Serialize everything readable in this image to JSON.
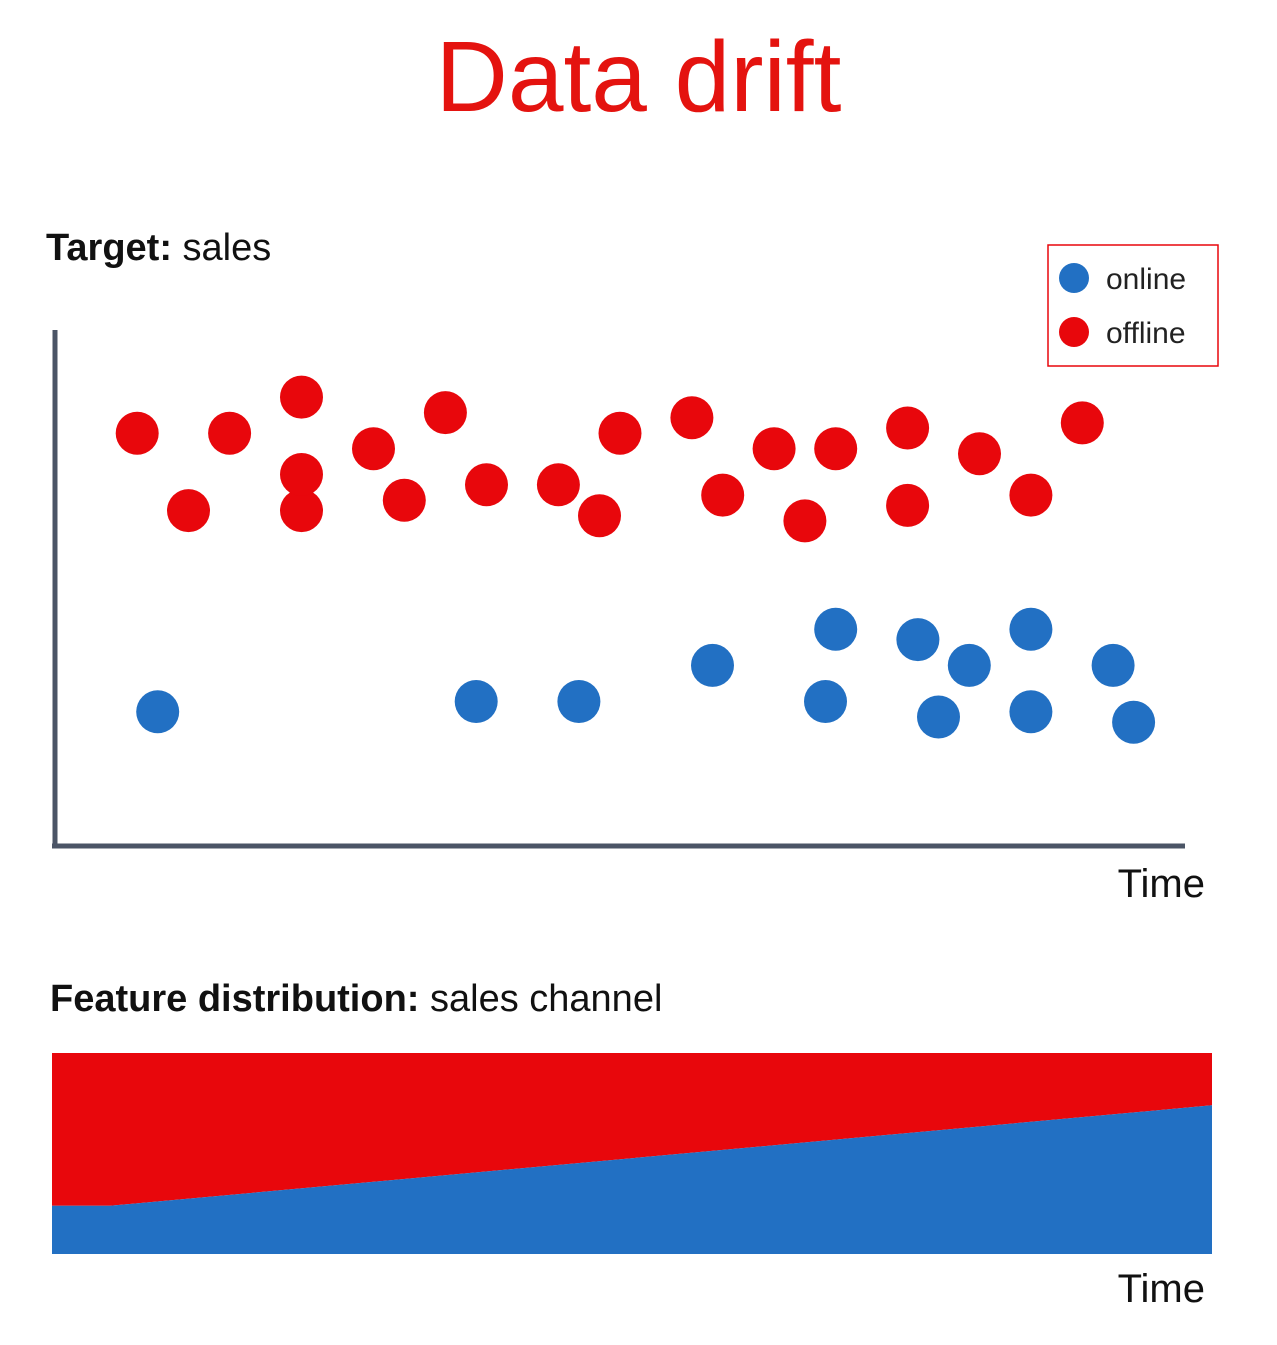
{
  "title": "Data drift",
  "colors": {
    "online": "#2270c3",
    "offline": "#e8070c",
    "axis": "#4b5566",
    "title": "#e4130f"
  },
  "chart_data": [
    {
      "type": "scatter",
      "title_bold": "Target:",
      "title_rest": "sales",
      "xlabel": "Time",
      "ylabel": "",
      "grid": false,
      "legend": {
        "placement": "top-right",
        "entries": [
          "online",
          "offline"
        ]
      },
      "series": [
        {
          "name": "offline",
          "points": [
            [
              8,
              80
            ],
            [
              13,
              65
            ],
            [
              17,
              80
            ],
            [
              24,
              65
            ],
            [
              24,
              72
            ],
            [
              24,
              87
            ],
            [
              31,
              77
            ],
            [
              34,
              67
            ],
            [
              38,
              84
            ],
            [
              42,
              70
            ],
            [
              49,
              70
            ],
            [
              53,
              64
            ],
            [
              55,
              80
            ],
            [
              62,
              83
            ],
            [
              65,
              68
            ],
            [
              70,
              77
            ],
            [
              73,
              63
            ],
            [
              76,
              77
            ],
            [
              83,
              81
            ],
            [
              83,
              66
            ],
            [
              90,
              76
            ],
            [
              95,
              68
            ],
            [
              100,
              82
            ]
          ]
        },
        {
          "name": "online",
          "points": [
            [
              10,
              26
            ],
            [
              41,
              28
            ],
            [
              51,
              28
            ],
            [
              64,
              35
            ],
            [
              75,
              28
            ],
            [
              76,
              42
            ],
            [
              84,
              40
            ],
            [
              86,
              25
            ],
            [
              89,
              35
            ],
            [
              95,
              42
            ],
            [
              95,
              26
            ],
            [
              103,
              35
            ],
            [
              105,
              24
            ]
          ]
        }
      ],
      "xlim": [
        0,
        110
      ],
      "ylim": [
        0,
        100
      ]
    },
    {
      "type": "area",
      "title_bold": "Feature distribution:",
      "title_rest": "sales channel",
      "xlabel": "Time",
      "stacked_percent": true,
      "x": [
        0,
        5,
        100
      ],
      "series": [
        {
          "name": "online",
          "values": [
            24,
            24,
            74
          ]
        },
        {
          "name": "offline",
          "values": [
            76,
            76,
            26
          ]
        }
      ]
    }
  ]
}
